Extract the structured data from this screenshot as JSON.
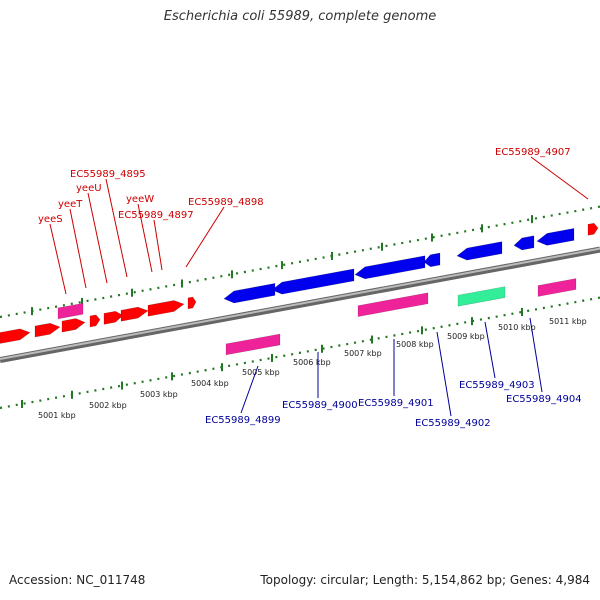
{
  "title": "Escherichia coli 55989, complete genome",
  "footer": {
    "accession": "Accession: NC_011748",
    "summary": "Topology: circular; Length: 5,154,862 bp; Genes: 4,984"
  },
  "colors": {
    "forward_label": "#cc0000",
    "reverse_label": "#000099",
    "cds_forward": "#ff0000",
    "cds_reverse": "#0000ee",
    "pink_feature": "#ee2299",
    "green_feature": "#33ee99",
    "backbone": "#888888",
    "tick": "#227722"
  },
  "ticks": [
    "5001 kbp",
    "5002 kbp",
    "5003 kbp",
    "5004 kbp",
    "5005 kbp",
    "5006 kbp",
    "5007 kbp",
    "5008 kbp",
    "5009 kbp",
    "5010 kbp",
    "5011 kbp"
  ],
  "labels_forward": [
    "yeeS",
    "yeeT",
    "yeeU",
    "EC55989_4895",
    "yeeW",
    "EC55989_4897",
    "EC55989_4898",
    "EC55989_4907"
  ],
  "labels_reverse": [
    "EC55989_4899",
    "EC55989_4900",
    "EC55989_4901",
    "EC55989_4902",
    "EC55989_4903",
    "EC55989_4904"
  ]
}
